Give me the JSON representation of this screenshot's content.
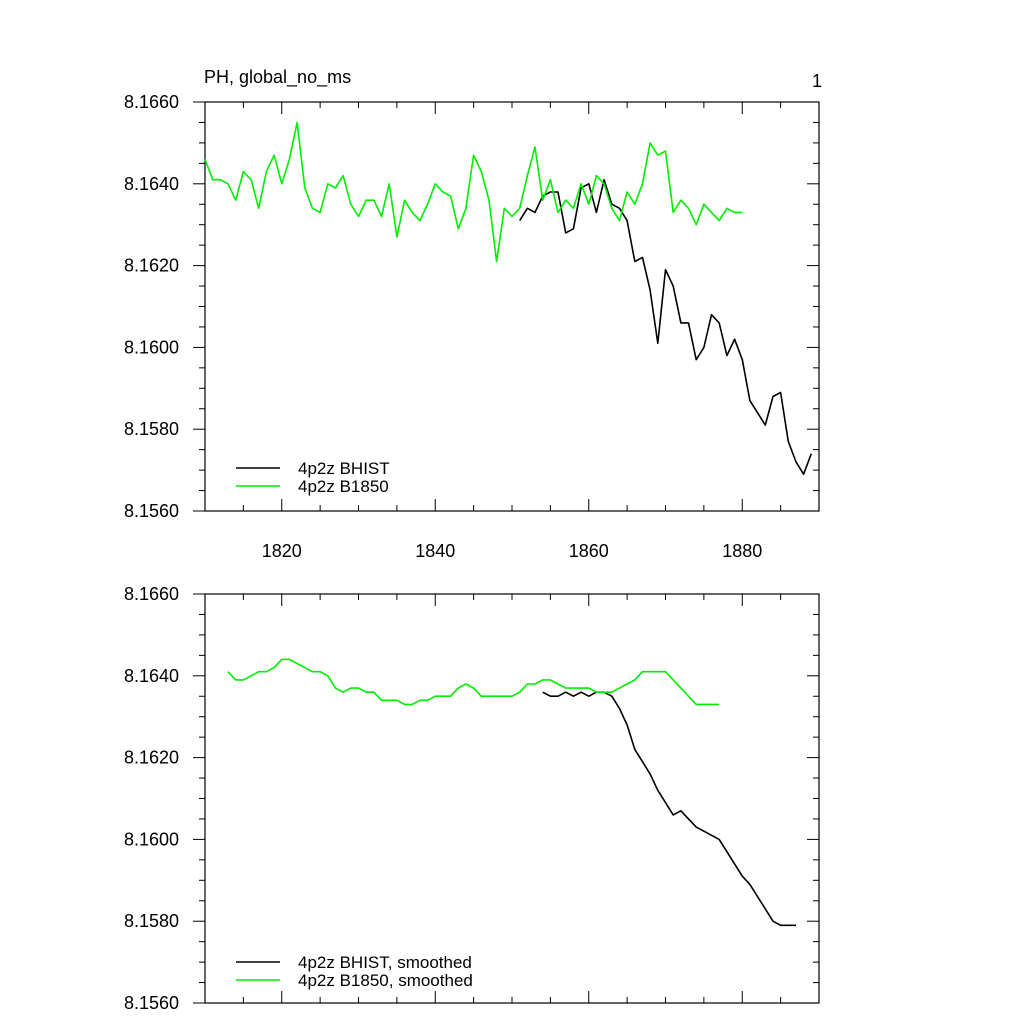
{
  "page": {
    "panel_number": "1"
  },
  "chart_data": [
    {
      "type": "line",
      "title": "PH, global_no_ms",
      "xlabel": "",
      "ylabel": "",
      "xlim": [
        1810,
        1890
      ],
      "ylim": [
        8.156,
        8.166
      ],
      "xticks": [
        1820,
        1840,
        1860,
        1880
      ],
      "xtick_labels": [
        "1820",
        "1840",
        "1860",
        "1880"
      ],
      "yticks": [
        8.156,
        8.158,
        8.16,
        8.162,
        8.164,
        8.166
      ],
      "ytick_labels": [
        "8.1560",
        "8.1580",
        "8.1600",
        "8.1620",
        "8.1640",
        "8.1660"
      ],
      "legend_position": "bottom-left",
      "series": [
        {
          "name": "4p2z BHIST",
          "color": "#000000",
          "x": [
            1851,
            1852,
            1853,
            1854,
            1855,
            1856,
            1857,
            1858,
            1859,
            1860,
            1861,
            1862,
            1863,
            1864,
            1865,
            1866,
            1867,
            1868,
            1869,
            1870,
            1871,
            1872,
            1873,
            1874,
            1875,
            1876,
            1877,
            1878,
            1879,
            1880,
            1881,
            1882,
            1883,
            1884,
            1885,
            1886,
            1887,
            1888,
            1889
          ],
          "values": [
            8.1631,
            8.1634,
            8.1633,
            8.1637,
            8.1638,
            8.1638,
            8.1628,
            8.1629,
            8.1639,
            8.164,
            8.1633,
            8.1641,
            8.1635,
            8.1634,
            8.1631,
            8.1621,
            8.1622,
            8.1614,
            8.1601,
            8.1619,
            8.1615,
            8.1606,
            8.1606,
            8.1597,
            8.16,
            8.1608,
            8.1606,
            8.1598,
            8.1602,
            8.1597,
            8.1587,
            8.1584,
            8.1581,
            8.1588,
            8.1589,
            8.1577,
            8.1572,
            8.1569,
            8.1574
          ]
        },
        {
          "name": "4p2z B1850",
          "color": "#00ee00",
          "x": [
            1810,
            1811,
            1812,
            1813,
            1814,
            1815,
            1816,
            1817,
            1818,
            1819,
            1820,
            1821,
            1822,
            1823,
            1824,
            1825,
            1826,
            1827,
            1828,
            1829,
            1830,
            1831,
            1832,
            1833,
            1834,
            1835,
            1836,
            1837,
            1838,
            1839,
            1840,
            1841,
            1842,
            1843,
            1844,
            1845,
            1846,
            1847,
            1848,
            1849,
            1850,
            1851,
            1852,
            1853,
            1854,
            1855,
            1856,
            1857,
            1858,
            1859,
            1860,
            1861,
            1862,
            1863,
            1864,
            1865,
            1866,
            1867,
            1868,
            1869,
            1870,
            1871,
            1872,
            1873,
            1874,
            1875,
            1876,
            1877,
            1878,
            1879,
            1880
          ],
          "values": [
            8.1646,
            8.1641,
            8.1641,
            8.164,
            8.1636,
            8.1643,
            8.1641,
            8.1634,
            8.1643,
            8.1647,
            8.164,
            8.1646,
            8.1655,
            8.1639,
            8.1634,
            8.1633,
            8.164,
            8.1639,
            8.1642,
            8.1635,
            8.1632,
            8.1636,
            8.1636,
            8.1632,
            8.164,
            8.1627,
            8.1636,
            8.1633,
            8.1631,
            8.1635,
            8.164,
            8.1638,
            8.1637,
            8.1629,
            8.1634,
            8.1647,
            8.1643,
            8.1636,
            8.1621,
            8.1634,
            8.1632,
            8.1634,
            8.1642,
            8.1649,
            8.1636,
            8.1641,
            8.1633,
            8.1636,
            8.1634,
            8.164,
            8.1635,
            8.1642,
            8.164,
            8.1634,
            8.1631,
            8.1638,
            8.1635,
            8.164,
            8.165,
            8.1647,
            8.1648,
            8.1633,
            8.1636,
            8.1634,
            8.163,
            8.1635,
            8.1633,
            8.1631,
            8.1634,
            8.1633,
            8.1633
          ]
        }
      ]
    },
    {
      "type": "line",
      "title": "",
      "xlabel": "",
      "ylabel": "",
      "xlim": [
        1810,
        1890
      ],
      "ylim": [
        8.156,
        8.166
      ],
      "xticks": [
        1820,
        1840,
        1860,
        1880
      ],
      "xtick_labels": [],
      "yticks": [
        8.156,
        8.158,
        8.16,
        8.162,
        8.164,
        8.166
      ],
      "ytick_labels": [
        "8.1560",
        "8.1580",
        "8.1600",
        "8.1620",
        "8.1640",
        "8.1660"
      ],
      "legend_position": "bottom-left",
      "series": [
        {
          "name": "4p2z BHIST, smoothed",
          "color": "#000000",
          "x": [
            1854,
            1855,
            1856,
            1857,
            1858,
            1859,
            1860,
            1861,
            1862,
            1863,
            1864,
            1865,
            1866,
            1867,
            1868,
            1869,
            1870,
            1871,
            1872,
            1873,
            1874,
            1875,
            1876,
            1877,
            1878,
            1879,
            1880,
            1881,
            1882,
            1883,
            1884,
            1885,
            1886,
            1887
          ],
          "values": [
            8.1636,
            8.1635,
            8.1635,
            8.1636,
            8.1635,
            8.1636,
            8.1635,
            8.1636,
            8.1636,
            8.1635,
            8.1632,
            8.1628,
            8.1622,
            8.1619,
            8.1616,
            8.1612,
            8.1609,
            8.1606,
            8.1607,
            8.1605,
            8.1603,
            8.1602,
            8.1601,
            8.16,
            8.1597,
            8.1594,
            8.1591,
            8.1589,
            8.1586,
            8.1583,
            8.158,
            8.1579,
            8.1579,
            8.1579
          ]
        },
        {
          "name": "4p2z B1850, smoothed",
          "color": "#00ee00",
          "x": [
            1813,
            1814,
            1815,
            1816,
            1817,
            1818,
            1819,
            1820,
            1821,
            1822,
            1823,
            1824,
            1825,
            1826,
            1827,
            1828,
            1829,
            1830,
            1831,
            1832,
            1833,
            1834,
            1835,
            1836,
            1837,
            1838,
            1839,
            1840,
            1841,
            1842,
            1843,
            1844,
            1845,
            1846,
            1847,
            1848,
            1849,
            1850,
            1851,
            1852,
            1853,
            1854,
            1855,
            1856,
            1857,
            1858,
            1859,
            1860,
            1861,
            1862,
            1863,
            1864,
            1865,
            1866,
            1867,
            1868,
            1869,
            1870,
            1871,
            1872,
            1873,
            1874,
            1875,
            1876,
            1877
          ],
          "values": [
            8.1641,
            8.1639,
            8.1639,
            8.164,
            8.1641,
            8.1641,
            8.1642,
            8.1644,
            8.1644,
            8.1643,
            8.1642,
            8.1641,
            8.1641,
            8.164,
            8.1637,
            8.1636,
            8.1637,
            8.1637,
            8.1636,
            8.1636,
            8.1634,
            8.1634,
            8.1634,
            8.1633,
            8.1633,
            8.1634,
            8.1634,
            8.1635,
            8.1635,
            8.1635,
            8.1637,
            8.1638,
            8.1637,
            8.1635,
            8.1635,
            8.1635,
            8.1635,
            8.1635,
            8.1636,
            8.1638,
            8.1638,
            8.1639,
            8.1639,
            8.1638,
            8.1637,
            8.1637,
            8.1637,
            8.1637,
            8.1636,
            8.1636,
            8.1636,
            8.1637,
            8.1638,
            8.1639,
            8.1641,
            8.1641,
            8.1641,
            8.1641,
            8.1639,
            8.1637,
            8.1635,
            8.1633,
            8.1633,
            8.1633,
            8.1633
          ]
        }
      ]
    }
  ]
}
